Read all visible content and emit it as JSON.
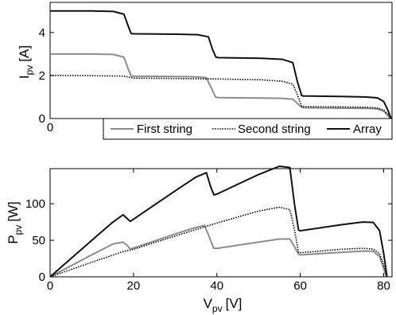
{
  "chart_data": [
    {
      "type": "line",
      "title": "",
      "xlabel": "",
      "ylabel": "I_pv [A]",
      "ylabel_parts": {
        "main": "I",
        "sub": "pv",
        "unit": "[A]"
      },
      "xlim": [
        0,
        81
      ],
      "ylim": [
        0,
        5.4
      ],
      "xticks": [
        0
      ],
      "xtick_labels": [
        "0"
      ],
      "yticks": [
        0,
        2,
        4
      ],
      "ytick_labels": [
        "0",
        "2",
        "4"
      ],
      "grid": false,
      "legend": {
        "placement": "lower-right",
        "entries": [
          "First string",
          "Second string",
          "Array"
        ]
      },
      "series": [
        {
          "name": "First string",
          "color": "#8c8c8c",
          "style": "solid",
          "x": [
            0,
            10,
            15,
            17.5,
            18.5,
            19.2,
            20,
            30,
            34,
            37,
            38,
            39.2,
            40,
            50,
            55,
            57.5,
            58.6,
            59.6,
            60,
            70,
            75,
            77.5,
            79,
            80,
            80.6
          ],
          "y": [
            3.0,
            3.0,
            2.98,
            2.85,
            2.3,
            1.98,
            1.97,
            1.95,
            1.94,
            1.9,
            1.5,
            1.0,
            0.97,
            0.95,
            0.94,
            0.9,
            0.7,
            0.52,
            0.5,
            0.48,
            0.47,
            0.45,
            0.35,
            0.15,
            0.0
          ]
        },
        {
          "name": "Second string",
          "color": "#000000",
          "style": "dotted",
          "x": [
            0,
            10,
            15,
            17.5,
            18.5,
            19.2,
            20,
            30,
            40,
            50,
            55,
            57.5,
            58.6,
            59.6,
            60,
            70,
            75,
            77.5,
            79,
            80,
            80.8
          ],
          "y": [
            2.0,
            1.99,
            1.98,
            1.97,
            1.93,
            1.9,
            1.88,
            1.86,
            1.84,
            1.8,
            1.73,
            1.6,
            1.1,
            0.56,
            0.55,
            0.54,
            0.52,
            0.49,
            0.4,
            0.2,
            0.0
          ]
        },
        {
          "name": "Array",
          "color": "#111111",
          "style": "solid",
          "x": [
            0,
            10,
            15,
            17.5,
            18.5,
            19.2,
            20,
            30,
            35,
            37.5,
            38.5,
            39.3,
            40,
            50,
            55,
            57.5,
            58.6,
            59.6,
            60,
            70,
            75,
            77.5,
            79,
            80,
            80.8
          ],
          "y": [
            5.0,
            5.0,
            4.98,
            4.85,
            4.3,
            3.95,
            3.94,
            3.92,
            3.9,
            3.8,
            3.2,
            2.85,
            2.83,
            2.8,
            2.75,
            2.6,
            1.7,
            1.07,
            1.05,
            1.02,
            1.0,
            0.96,
            0.8,
            0.4,
            0.0
          ]
        }
      ]
    },
    {
      "type": "line",
      "title": "",
      "xlabel": "V_pv [V]",
      "xlabel_parts": {
        "main": "V",
        "sub": "pv",
        "unit": "[V]"
      },
      "ylabel": "P_pv [W]",
      "ylabel_parts": {
        "main": "P",
        "sub": "pv",
        "unit": "[W]"
      },
      "xlim": [
        0,
        82
      ],
      "ylim": [
        0,
        148
      ],
      "xticks": [
        0,
        20,
        40,
        60,
        80
      ],
      "xtick_labels": [
        "0",
        "20",
        "40",
        "60",
        "80"
      ],
      "yticks": [
        0,
        50,
        100
      ],
      "ytick_labels": [
        "0",
        "50",
        "100"
      ],
      "grid": false,
      "series": [
        {
          "name": "First string",
          "color": "#8c8c8c",
          "style": "solid",
          "x": [
            0,
            10,
            15,
            17.5,
            18.5,
            19.2,
            20,
            30,
            34,
            37,
            38,
            39.2,
            40,
            50,
            55,
            57.5,
            58.6,
            59.6,
            60,
            70,
            75,
            77.5,
            79,
            80,
            80.6
          ],
          "y": [
            0,
            30,
            44.7,
            47.4,
            43,
            38,
            39.4,
            58.5,
            66,
            70.3,
            57,
            39.2,
            38.8,
            47.5,
            51.7,
            51.8,
            41,
            31,
            30,
            33.6,
            35.3,
            34.9,
            27.7,
            12,
            0
          ]
        },
        {
          "name": "Second string",
          "color": "#000000",
          "style": "dotted",
          "x": [
            0,
            10,
            15,
            17.5,
            18.5,
            19.2,
            20,
            30,
            40,
            50,
            55,
            57.5,
            58.6,
            59.6,
            60,
            70,
            75,
            77.5,
            79,
            80,
            80.8
          ],
          "y": [
            0,
            19.9,
            29.7,
            34.5,
            35.7,
            36.5,
            37.6,
            55.8,
            73.6,
            90,
            95.2,
            92,
            64.5,
            33.4,
            33,
            37.8,
            39,
            38,
            31.6,
            16,
            0
          ]
        },
        {
          "name": "Array",
          "color": "#111111",
          "style": "solid",
          "x": [
            0,
            10,
            15,
            17.5,
            18.5,
            19.2,
            20,
            30,
            35,
            37.5,
            38.5,
            39.3,
            40,
            50,
            55,
            57.5,
            58.6,
            59.6,
            60,
            70,
            75,
            77.5,
            79,
            80,
            80.8
          ],
          "y": [
            0,
            50,
            74.7,
            84.9,
            79.6,
            75.8,
            78.8,
            117.6,
            136.5,
            142.5,
            123.2,
            112,
            113.2,
            140,
            151.3,
            149.5,
            99.6,
            63.8,
            63,
            71.4,
            75,
            74.4,
            63.2,
            32,
            0
          ]
        }
      ]
    }
  ]
}
